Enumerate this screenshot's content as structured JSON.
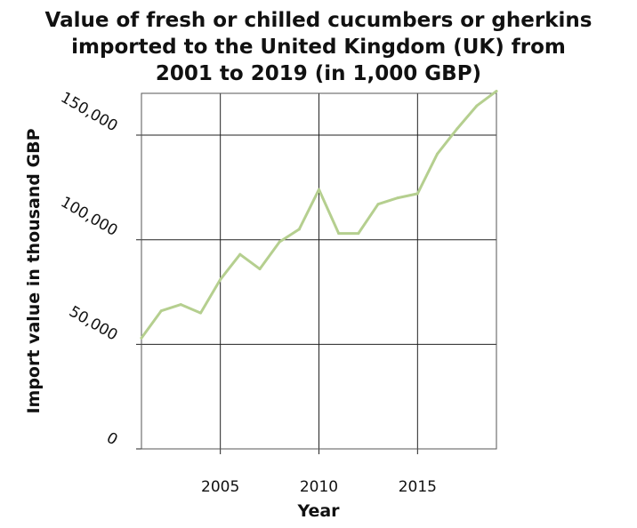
{
  "chart_data": {
    "type": "line",
    "title_lines": [
      "Value of fresh or chilled cucumbers or gherkins",
      "imported to the United Kingdom (UK) from",
      "2001 to 2019 (in 1,000 GBP)"
    ],
    "xlabel": "Year",
    "ylabel": "Import value in thousand GBP",
    "xlim": [
      2001,
      2019
    ],
    "ylim": [
      0,
      170000
    ],
    "x_ticks": [
      2005,
      2010,
      2015
    ],
    "x_tick_labels": [
      "2005",
      "2010",
      "2015"
    ],
    "y_ticks": [
      0,
      50000,
      100000,
      150000
    ],
    "y_tick_labels": [
      "0",
      "50,000",
      "100,000",
      "150,000"
    ],
    "grid": true,
    "legend": "none",
    "series": [
      {
        "color": "#b5cf8f",
        "x": [
          2001,
          2002,
          2003,
          2004,
          2005,
          2006,
          2007,
          2008,
          2009,
          2010,
          2011,
          2012,
          2013,
          2014,
          2015,
          2016,
          2017,
          2018,
          2019
        ],
        "y": [
          53000,
          66000,
          69000,
          65000,
          81000,
          93000,
          86000,
          99000,
          105000,
          124000,
          103000,
          103000,
          117000,
          120000,
          122000,
          141000,
          153000,
          164000,
          171000
        ]
      }
    ]
  }
}
